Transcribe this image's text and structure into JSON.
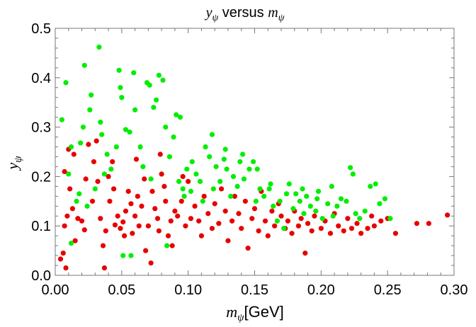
{
  "chart_data": {
    "type": "scatter",
    "title": "yψ versus mψ",
    "title_parts": {
      "var1": "y",
      "sub1": "ψ",
      "mid": " versus ",
      "var2": "m",
      "sub2": "ψ"
    },
    "xlabel": "mψ[GeV]",
    "xlabel_parts": {
      "var": "m",
      "sub": "ψ",
      "unit": "[GeV]"
    },
    "ylabel": "yψ",
    "ylabel_parts": {
      "var": "y",
      "sub": "ψ"
    },
    "xlim": [
      0,
      0.3
    ],
    "ylim": [
      0,
      0.5
    ],
    "x_ticks": [
      0.0,
      0.05,
      0.1,
      0.15,
      0.2,
      0.25,
      0.3
    ],
    "x_tick_labels": [
      "0.00",
      "0.05",
      "0.10",
      "0.15",
      "0.20",
      "0.25",
      "0.30"
    ],
    "y_ticks": [
      0.0,
      0.1,
      0.2,
      0.3,
      0.4,
      0.5
    ],
    "y_tick_labels": [
      "0.0",
      "0.1",
      "0.2",
      "0.3",
      "0.4",
      "0.5"
    ],
    "colors": {
      "red": "#e80000",
      "green": "#00ee00",
      "frame": "#777777"
    },
    "series": [
      {
        "name": "red",
        "color": "#e80000",
        "points": [
          [
            0.004,
            0.033
          ],
          [
            0.006,
            0.045
          ],
          [
            0.008,
            0.015
          ],
          [
            0.007,
            0.1
          ],
          [
            0.009,
            0.12
          ],
          [
            0.011,
            0.175
          ],
          [
            0.013,
            0.135
          ],
          [
            0.01,
            0.255
          ],
          [
            0.015,
            0.07
          ],
          [
            0.017,
            0.115
          ],
          [
            0.02,
            0.11
          ],
          [
            0.022,
            0.092
          ],
          [
            0.023,
            0.195
          ],
          [
            0.025,
            0.265
          ],
          [
            0.028,
            0.15
          ],
          [
            0.029,
            0.23
          ],
          [
            0.032,
            0.19
          ],
          [
            0.034,
            0.115
          ],
          [
            0.036,
            0.06
          ],
          [
            0.037,
            0.015
          ],
          [
            0.038,
            0.09
          ],
          [
            0.04,
            0.2
          ],
          [
            0.041,
            0.15
          ],
          [
            0.043,
            0.23
          ],
          [
            0.045,
            0.102
          ],
          [
            0.047,
            0.12
          ],
          [
            0.049,
            0.095
          ],
          [
            0.051,
            0.108
          ],
          [
            0.052,
            0.08
          ],
          [
            0.053,
            0.13
          ],
          [
            0.055,
            0.17
          ],
          [
            0.057,
            0.145
          ],
          [
            0.058,
            0.085
          ],
          [
            0.06,
            0.12
          ],
          [
            0.062,
            0.16
          ],
          [
            0.063,
            0.1
          ],
          [
            0.065,
            0.14
          ],
          [
            0.067,
            0.195
          ],
          [
            0.068,
            0.05
          ],
          [
            0.07,
            0.1
          ],
          [
            0.072,
            0.025
          ],
          [
            0.073,
            0.17
          ],
          [
            0.075,
            0.135
          ],
          [
            0.077,
            0.115
          ],
          [
            0.078,
            0.09
          ],
          [
            0.08,
            0.205
          ],
          [
            0.082,
            0.18
          ],
          [
            0.083,
            0.15
          ],
          [
            0.085,
            0.08
          ],
          [
            0.087,
            0.11
          ],
          [
            0.088,
            0.06
          ],
          [
            0.09,
            0.13
          ],
          [
            0.092,
            0.12
          ],
          [
            0.095,
            0.15
          ],
          [
            0.098,
            0.1
          ],
          [
            0.1,
            0.19
          ],
          [
            0.102,
            0.115
          ],
          [
            0.105,
            0.14
          ],
          [
            0.108,
            0.11
          ],
          [
            0.11,
            0.08
          ],
          [
            0.112,
            0.16
          ],
          [
            0.115,
            0.125
          ],
          [
            0.118,
            0.095
          ],
          [
            0.12,
            0.145
          ],
          [
            0.123,
            0.105
          ],
          [
            0.125,
            0.175
          ],
          [
            0.128,
            0.13
          ],
          [
            0.13,
            0.07
          ],
          [
            0.133,
            0.11
          ],
          [
            0.135,
            0.16
          ],
          [
            0.138,
            0.125
          ],
          [
            0.14,
            0.095
          ],
          [
            0.143,
            0.15
          ],
          [
            0.145,
            0.055
          ],
          [
            0.148,
            0.115
          ],
          [
            0.15,
            0.135
          ],
          [
            0.153,
            0.09
          ],
          [
            0.155,
            0.17
          ],
          [
            0.158,
            0.11
          ],
          [
            0.16,
            0.08
          ],
          [
            0.163,
            0.13
          ],
          [
            0.165,
            0.1
          ],
          [
            0.168,
            0.145
          ],
          [
            0.17,
            0.12
          ],
          [
            0.173,
            0.095
          ],
          [
            0.175,
            0.11
          ],
          [
            0.178,
            0.085
          ],
          [
            0.18,
            0.13
          ],
          [
            0.183,
            0.1
          ],
          [
            0.185,
            0.115
          ],
          [
            0.188,
            0.045
          ],
          [
            0.19,
            0.105
          ],
          [
            0.193,
            0.09
          ],
          [
            0.195,
            0.12
          ],
          [
            0.2,
            0.095
          ],
          [
            0.203,
            0.11
          ],
          [
            0.207,
            0.085
          ],
          [
            0.21,
            0.125
          ],
          [
            0.213,
            0.1
          ],
          [
            0.217,
            0.09
          ],
          [
            0.22,
            0.115
          ],
          [
            0.223,
            0.095
          ],
          [
            0.227,
            0.105
          ],
          [
            0.23,
            0.085
          ],
          [
            0.235,
            0.095
          ],
          [
            0.238,
            0.12
          ],
          [
            0.24,
            0.1
          ],
          [
            0.245,
            0.11
          ],
          [
            0.25,
            0.115
          ],
          [
            0.256,
            0.085
          ],
          [
            0.272,
            0.105
          ],
          [
            0.281,
            0.105
          ],
          [
            0.295,
            0.122
          ],
          [
            0.007,
            0.21
          ],
          [
            0.014,
            0.245
          ],
          [
            0.031,
            0.272
          ],
          [
            0.044,
            0.175
          ],
          [
            0.061,
            0.235
          ],
          [
            0.079,
            0.245
          ],
          [
            0.096,
            0.2
          ]
        ]
      },
      {
        "name": "green",
        "color": "#00ee00",
        "points": [
          [
            0.005,
            0.315
          ],
          [
            0.008,
            0.39
          ],
          [
            0.012,
            0.26
          ],
          [
            0.016,
            0.15
          ],
          [
            0.019,
            0.268
          ],
          [
            0.021,
            0.3
          ],
          [
            0.022,
            0.425
          ],
          [
            0.026,
            0.335
          ],
          [
            0.027,
            0.365
          ],
          [
            0.03,
            0.175
          ],
          [
            0.033,
            0.462
          ],
          [
            0.034,
            0.31
          ],
          [
            0.035,
            0.285
          ],
          [
            0.039,
            0.245
          ],
          [
            0.042,
            0.215
          ],
          [
            0.046,
            0.26
          ],
          [
            0.048,
            0.415
          ],
          [
            0.049,
            0.38
          ],
          [
            0.05,
            0.36
          ],
          [
            0.053,
            0.295
          ],
          [
            0.056,
            0.29
          ],
          [
            0.059,
            0.41
          ],
          [
            0.06,
            0.335
          ],
          [
            0.064,
            0.26
          ],
          [
            0.066,
            0.22
          ],
          [
            0.069,
            0.39
          ],
          [
            0.071,
            0.385
          ],
          [
            0.074,
            0.34
          ],
          [
            0.076,
            0.355
          ],
          [
            0.078,
            0.405
          ],
          [
            0.081,
            0.395
          ],
          [
            0.083,
            0.3
          ],
          [
            0.086,
            0.24
          ],
          [
            0.089,
            0.28
          ],
          [
            0.091,
            0.325
          ],
          [
            0.093,
            0.19
          ],
          [
            0.094,
            0.32
          ],
          [
            0.096,
            0.175
          ],
          [
            0.097,
            0.16
          ],
          [
            0.099,
            0.215
          ],
          [
            0.103,
            0.23
          ],
          [
            0.106,
            0.205
          ],
          [
            0.109,
            0.19
          ],
          [
            0.111,
            0.15
          ],
          [
            0.113,
            0.26
          ],
          [
            0.116,
            0.24
          ],
          [
            0.119,
            0.175
          ],
          [
            0.121,
            0.22
          ],
          [
            0.124,
            0.19
          ],
          [
            0.127,
            0.235
          ],
          [
            0.129,
            0.215
          ],
          [
            0.132,
            0.16
          ],
          [
            0.134,
            0.2
          ],
          [
            0.137,
            0.18
          ],
          [
            0.139,
            0.23
          ],
          [
            0.142,
            0.195
          ],
          [
            0.146,
            0.215
          ],
          [
            0.149,
            0.23
          ],
          [
            0.151,
            0.15
          ],
          [
            0.154,
            0.175
          ],
          [
            0.157,
            0.16
          ],
          [
            0.161,
            0.175
          ],
          [
            0.164,
            0.14
          ],
          [
            0.167,
            0.11
          ],
          [
            0.169,
            0.15
          ],
          [
            0.172,
            0.095
          ],
          [
            0.176,
            0.185
          ],
          [
            0.179,
            0.135
          ],
          [
            0.181,
            0.165
          ],
          [
            0.184,
            0.15
          ],
          [
            0.187,
            0.125
          ],
          [
            0.189,
            0.16
          ],
          [
            0.192,
            0.14
          ],
          [
            0.196,
            0.13
          ],
          [
            0.198,
            0.17
          ],
          [
            0.201,
            0.115
          ],
          [
            0.205,
            0.145
          ],
          [
            0.208,
            0.18
          ],
          [
            0.212,
            0.14
          ],
          [
            0.215,
            0.155
          ],
          [
            0.219,
            0.15
          ],
          [
            0.222,
            0.218
          ],
          [
            0.226,
            0.125
          ],
          [
            0.229,
            0.115
          ],
          [
            0.233,
            0.13
          ],
          [
            0.237,
            0.18
          ],
          [
            0.241,
            0.185
          ],
          [
            0.244,
            0.145
          ],
          [
            0.248,
            0.155
          ],
          [
            0.252,
            0.115
          ],
          [
            0.01,
            0.205
          ],
          [
            0.018,
            0.165
          ],
          [
            0.024,
            0.14
          ],
          [
            0.037,
            0.205
          ],
          [
            0.051,
            0.04
          ],
          [
            0.057,
            0.04
          ],
          [
            0.072,
            0.195
          ],
          [
            0.084,
            0.06
          ],
          [
            0.102,
            0.17
          ],
          [
            0.118,
            0.285
          ],
          [
            0.128,
            0.255
          ],
          [
            0.141,
            0.245
          ],
          [
            0.152,
            0.215
          ],
          [
            0.162,
            0.185
          ],
          [
            0.174,
            0.165
          ],
          [
            0.186,
            0.175
          ],
          [
            0.197,
            0.155
          ],
          [
            0.209,
            0.12
          ],
          [
            0.224,
            0.205
          ],
          [
            0.012,
            0.065
          ]
        ]
      }
    ]
  }
}
